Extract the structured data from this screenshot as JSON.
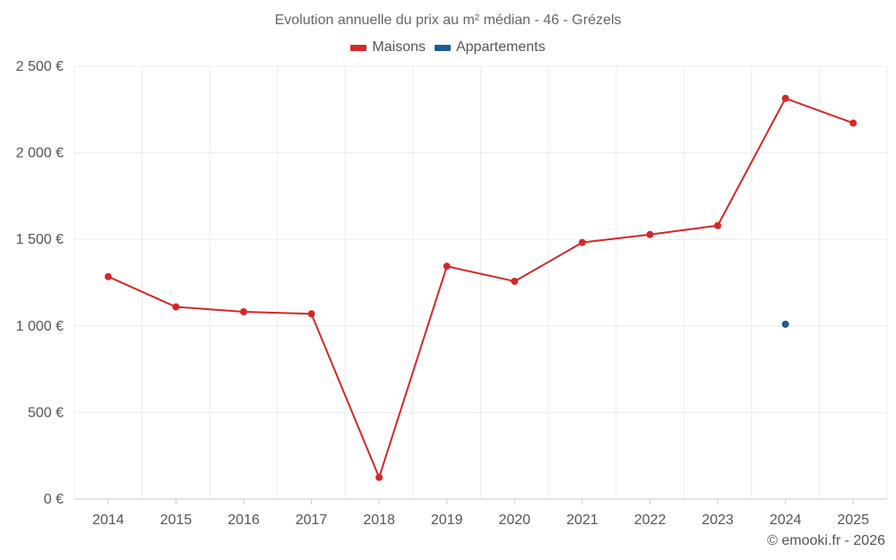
{
  "title": "Evolution annuelle du prix au m² médian - 46 - Grézels",
  "credit": "© emooki.fr - 2026",
  "chart_data": {
    "type": "line",
    "title": "Evolution annuelle du prix au m² médian - 46 - Grézels",
    "categories": [
      "2014",
      "2015",
      "2016",
      "2017",
      "2018",
      "2019",
      "2020",
      "2021",
      "2022",
      "2023",
      "2024",
      "2025"
    ],
    "y_ticks": [
      "0 €",
      "500 €",
      "1 000 €",
      "1 500 €",
      "2 000 €",
      "2 500 €"
    ],
    "ylim": [
      0,
      2500
    ],
    "grid": true,
    "legend_position": "top-center",
    "series": [
      {
        "name": "Maisons",
        "color": "#d62728",
        "values": [
          1285,
          1110,
          1082,
          1070,
          125,
          1345,
          1258,
          1482,
          1528,
          1580,
          2315,
          2172
        ]
      },
      {
        "name": "Appartements",
        "color": "#1a5e96",
        "values": [
          null,
          null,
          null,
          null,
          null,
          null,
          null,
          null,
          null,
          null,
          1010,
          null
        ]
      }
    ]
  }
}
